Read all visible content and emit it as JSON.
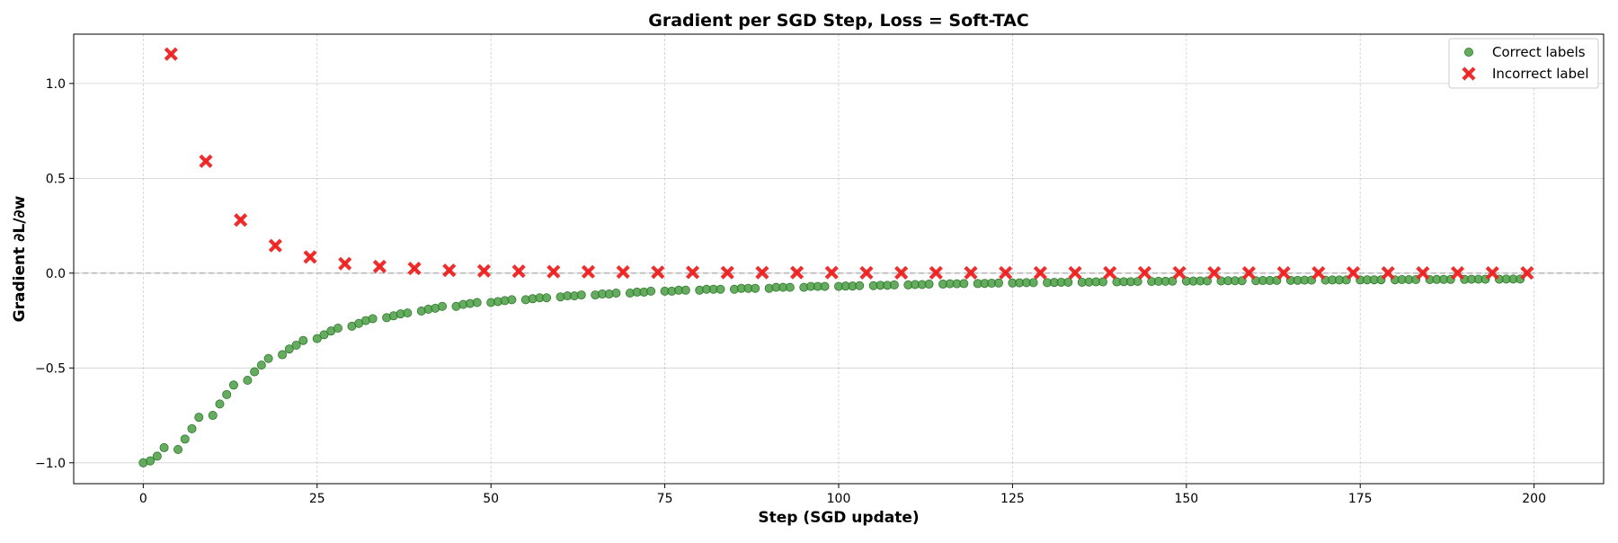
{
  "chart_data": {
    "type": "scatter",
    "title": "Gradient per SGD Step,  Loss = Soft-TAC",
    "xlabel": "Step (SGD update)",
    "ylabel": "Gradient ∂L/∂w",
    "xlim": [
      -10,
      210
    ],
    "ylim": [
      -1.11,
      1.26
    ],
    "xticks": [
      0,
      25,
      50,
      75,
      100,
      125,
      150,
      175,
      200
    ],
    "yticks": [
      -1.0,
      -0.5,
      0.0,
      0.5,
      1.0
    ],
    "ytick_labels": [
      "−1.0",
      "−0.5",
      "0.0",
      "0.5",
      "1.0"
    ],
    "grid": true,
    "reference_line_y": 0,
    "legend_position": "top-right",
    "series": [
      {
        "name": "Correct labels",
        "color": "#4a9e45",
        "marker": "circle",
        "points": [
          [
            0,
            -1.0
          ],
          [
            1,
            -0.99
          ],
          [
            2,
            -0.965
          ],
          [
            3,
            -0.92
          ],
          [
            5,
            -0.93
          ],
          [
            6,
            -0.875
          ],
          [
            7,
            -0.82
          ],
          [
            8,
            -0.76
          ],
          [
            10,
            -0.75
          ],
          [
            11,
            -0.69
          ],
          [
            12,
            -0.64
          ],
          [
            13,
            -0.59
          ],
          [
            15,
            -0.565
          ],
          [
            16,
            -0.52
          ],
          [
            17,
            -0.485
          ],
          [
            18,
            -0.45
          ],
          [
            20,
            -0.43
          ],
          [
            21,
            -0.4
          ],
          [
            22,
            -0.38
          ],
          [
            23,
            -0.355
          ],
          [
            25,
            -0.345
          ],
          [
            26,
            -0.325
          ],
          [
            27,
            -0.305
          ],
          [
            28,
            -0.29
          ],
          [
            30,
            -0.28
          ],
          [
            31,
            -0.265
          ],
          [
            32,
            -0.25
          ],
          [
            33,
            -0.24
          ],
          [
            35,
            -0.235
          ],
          [
            36,
            -0.225
          ],
          [
            37,
            -0.215
          ],
          [
            38,
            -0.21
          ],
          [
            40,
            -0.2
          ],
          [
            41,
            -0.19
          ],
          [
            42,
            -0.185
          ],
          [
            43,
            -0.175
          ],
          [
            45,
            -0.175
          ],
          [
            46,
            -0.165
          ],
          [
            47,
            -0.16
          ],
          [
            48,
            -0.155
          ],
          [
            50,
            -0.155
          ],
          [
            51,
            -0.15
          ],
          [
            52,
            -0.145
          ],
          [
            53,
            -0.14
          ],
          [
            55,
            -0.14
          ],
          [
            56,
            -0.135
          ],
          [
            57,
            -0.13
          ],
          [
            58,
            -0.13
          ],
          [
            60,
            -0.125
          ],
          [
            61,
            -0.12
          ],
          [
            62,
            -0.12
          ],
          [
            63,
            -0.115
          ],
          [
            65,
            -0.115
          ],
          [
            66,
            -0.11
          ],
          [
            67,
            -0.11
          ],
          [
            68,
            -0.105
          ],
          [
            70,
            -0.105
          ],
          [
            71,
            -0.1
          ],
          [
            72,
            -0.1
          ],
          [
            73,
            -0.095
          ],
          [
            75,
            -0.095
          ],
          [
            76,
            -0.095
          ],
          [
            77,
            -0.09
          ],
          [
            78,
            -0.09
          ],
          [
            80,
            -0.09
          ],
          [
            81,
            -0.085
          ],
          [
            82,
            -0.085
          ],
          [
            83,
            -0.085
          ],
          [
            85,
            -0.085
          ],
          [
            86,
            -0.08
          ],
          [
            87,
            -0.08
          ],
          [
            88,
            -0.08
          ],
          [
            90,
            -0.08
          ],
          [
            91,
            -0.075
          ],
          [
            92,
            -0.075
          ],
          [
            93,
            -0.075
          ],
          [
            95,
            -0.075
          ],
          [
            96,
            -0.07
          ],
          [
            97,
            -0.07
          ],
          [
            98,
            -0.07
          ],
          [
            100,
            -0.07
          ],
          [
            101,
            -0.068
          ],
          [
            102,
            -0.068
          ],
          [
            103,
            -0.066
          ],
          [
            105,
            -0.066
          ],
          [
            106,
            -0.064
          ],
          [
            107,
            -0.064
          ],
          [
            108,
            -0.062
          ],
          [
            110,
            -0.062
          ],
          [
            111,
            -0.06
          ],
          [
            112,
            -0.06
          ],
          [
            113,
            -0.058
          ],
          [
            115,
            -0.058
          ],
          [
            116,
            -0.056
          ],
          [
            117,
            -0.056
          ],
          [
            118,
            -0.055
          ],
          [
            120,
            -0.055
          ],
          [
            121,
            -0.054
          ],
          [
            122,
            -0.053
          ],
          [
            123,
            -0.052
          ],
          [
            125,
            -0.052
          ],
          [
            126,
            -0.051
          ],
          [
            127,
            -0.05
          ],
          [
            128,
            -0.05
          ],
          [
            130,
            -0.05
          ],
          [
            131,
            -0.049
          ],
          [
            132,
            -0.048
          ],
          [
            133,
            -0.048
          ],
          [
            135,
            -0.048
          ],
          [
            136,
            -0.047
          ],
          [
            137,
            -0.046
          ],
          [
            138,
            -0.046
          ],
          [
            140,
            -0.046
          ],
          [
            141,
            -0.045
          ],
          [
            142,
            -0.045
          ],
          [
            143,
            -0.044
          ],
          [
            145,
            -0.044
          ],
          [
            146,
            -0.043
          ],
          [
            147,
            -0.043
          ],
          [
            148,
            -0.042
          ],
          [
            150,
            -0.042
          ],
          [
            151,
            -0.042
          ],
          [
            152,
            -0.041
          ],
          [
            153,
            -0.041
          ],
          [
            155,
            -0.041
          ],
          [
            156,
            -0.04
          ],
          [
            157,
            -0.04
          ],
          [
            158,
            -0.04
          ],
          [
            160,
            -0.04
          ],
          [
            161,
            -0.039
          ],
          [
            162,
            -0.039
          ],
          [
            163,
            -0.038
          ],
          [
            165,
            -0.038
          ],
          [
            166,
            -0.038
          ],
          [
            167,
            -0.037
          ],
          [
            168,
            -0.037
          ],
          [
            170,
            -0.037
          ],
          [
            171,
            -0.036
          ],
          [
            172,
            -0.036
          ],
          [
            173,
            -0.036
          ],
          [
            175,
            -0.036
          ],
          [
            176,
            -0.035
          ],
          [
            177,
            -0.035
          ],
          [
            178,
            -0.035
          ],
          [
            180,
            -0.035
          ],
          [
            181,
            -0.034
          ],
          [
            182,
            -0.034
          ],
          [
            183,
            -0.034
          ],
          [
            185,
            -0.034
          ],
          [
            186,
            -0.033
          ],
          [
            187,
            -0.033
          ],
          [
            188,
            -0.033
          ],
          [
            190,
            -0.033
          ],
          [
            191,
            -0.032
          ],
          [
            192,
            -0.032
          ],
          [
            193,
            -0.032
          ],
          [
            195,
            -0.032
          ],
          [
            196,
            -0.031
          ],
          [
            197,
            -0.031
          ],
          [
            198,
            -0.031
          ]
        ]
      },
      {
        "name": "Incorrect label",
        "color": "#ee2222",
        "marker": "x",
        "points": [
          [
            4,
            1.155
          ],
          [
            9,
            0.59
          ],
          [
            14,
            0.28
          ],
          [
            19,
            0.145
          ],
          [
            24,
            0.085
          ],
          [
            29,
            0.05
          ],
          [
            34,
            0.035
          ],
          [
            39,
            0.025
          ],
          [
            44,
            0.015
          ],
          [
            49,
            0.012
          ],
          [
            54,
            0.01
          ],
          [
            59,
            0.008
          ],
          [
            64,
            0.007
          ],
          [
            69,
            0.006
          ],
          [
            74,
            0.005
          ],
          [
            79,
            0.004
          ],
          [
            84,
            0.003
          ],
          [
            89,
            0.003
          ],
          [
            94,
            0.003
          ],
          [
            99,
            0.003
          ],
          [
            104,
            0.002
          ],
          [
            109,
            0.002
          ],
          [
            114,
            0.002
          ],
          [
            119,
            0.002
          ],
          [
            124,
            0.002
          ],
          [
            129,
            0.002
          ],
          [
            134,
            0.002
          ],
          [
            139,
            0.002
          ],
          [
            144,
            0.002
          ],
          [
            149,
            0.002
          ],
          [
            154,
            0.001
          ],
          [
            159,
            0.001
          ],
          [
            164,
            0.001
          ],
          [
            169,
            0.001
          ],
          [
            174,
            0.001
          ],
          [
            179,
            0.001
          ],
          [
            184,
            0.001
          ],
          [
            189,
            0.001
          ],
          [
            194,
            0.001
          ],
          [
            199,
            0.001
          ]
        ]
      }
    ]
  }
}
